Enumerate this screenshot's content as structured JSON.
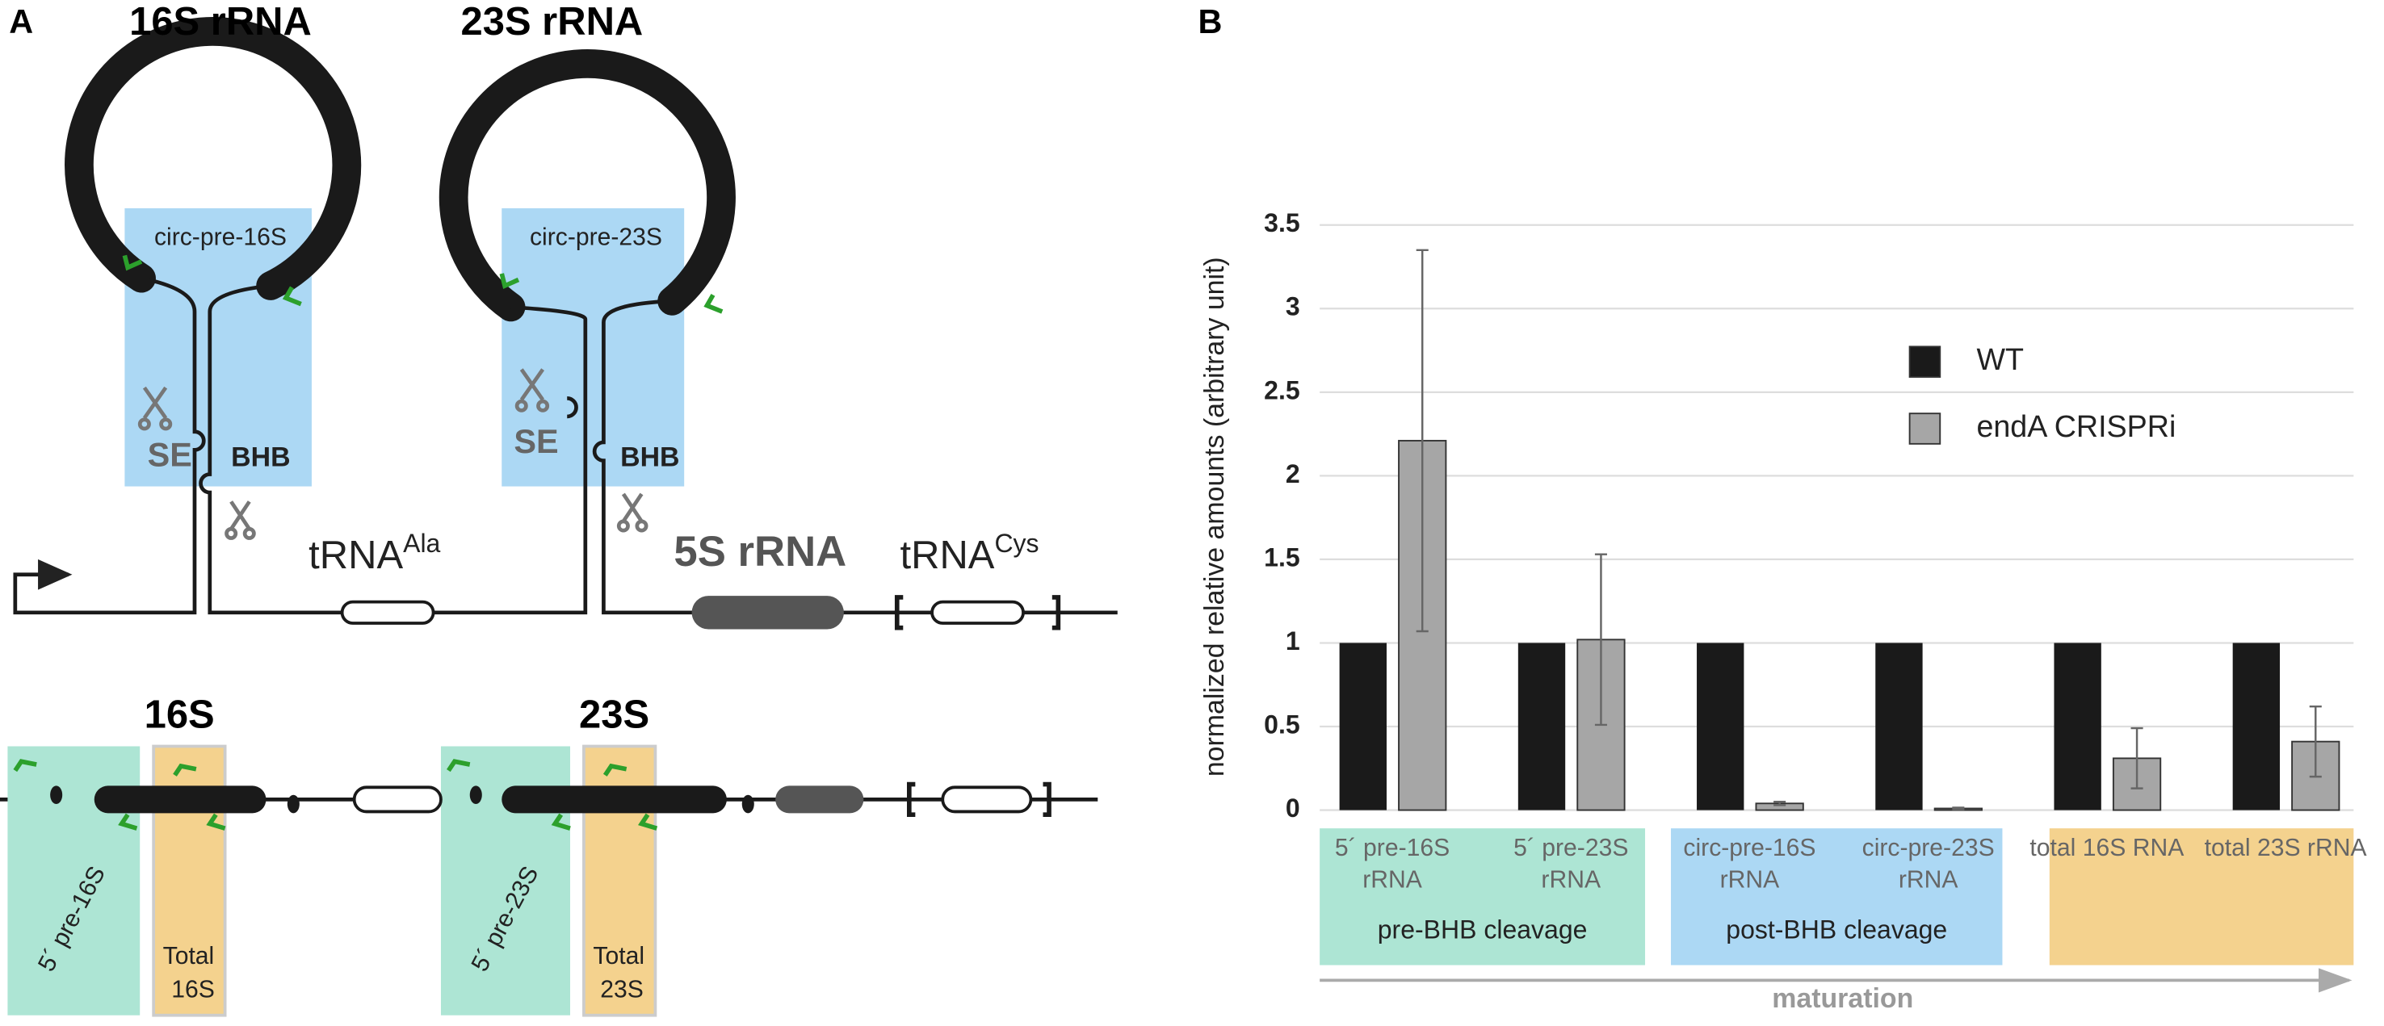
{
  "panel_a": {
    "label": "A",
    "title_16s": "16S rRNA",
    "title_23s": "23S rRNA",
    "circ_16s": "circ-pre-16S",
    "circ_23s": "circ-pre-23S",
    "se_1": "SE",
    "bhb_1": "BHB",
    "se_2": "SE",
    "bhb_2": "BHB",
    "trna_ala": {
      "base": "tRNA",
      "sup": "Ala"
    },
    "rrna_5s": "5S rRNA",
    "trna_cys": {
      "base": "tRNA",
      "sup": "Cys"
    },
    "label_16s": "16S",
    "label_23s": "23S",
    "pre_16s": "5´ pre-16S",
    "pre_23s": "5´ pre-23S",
    "total_16s": [
      "Total",
      "16S"
    ],
    "total_23s": [
      "Total",
      "23S"
    ]
  },
  "chart_data": {
    "type": "bar",
    "panel_label": "B",
    "ylabel": "normalized relative amounts (arbitrary unit)",
    "categories": [
      "5´ pre-16S rRNA",
      "5´ pre-23S rRNA",
      "circ-pre-16S rRNA",
      "circ-pre-23S rRNA",
      "total 16S RNA",
      "total 23S rRNA"
    ],
    "series": [
      {
        "name": "WT",
        "color": "#1a1a1a",
        "values": [
          1,
          1,
          1,
          1,
          1,
          1
        ]
      },
      {
        "name": "endA CRISPRi",
        "color": "#a6a6a6",
        "values": [
          2.21,
          1.02,
          0.04,
          0.01,
          0.31,
          0.41
        ],
        "errors": [
          1.14,
          0.51,
          0.01,
          0.005,
          0.18,
          0.21
        ]
      }
    ],
    "ylim": [
      0,
      3.5
    ],
    "yticks": [
      0,
      0.5,
      1,
      1.5,
      2,
      2.5,
      3,
      3.5
    ],
    "grid": true,
    "group_labels": [
      "pre-BHB cleavage",
      "post-BHB cleavage"
    ],
    "xlabel": "maturation"
  }
}
